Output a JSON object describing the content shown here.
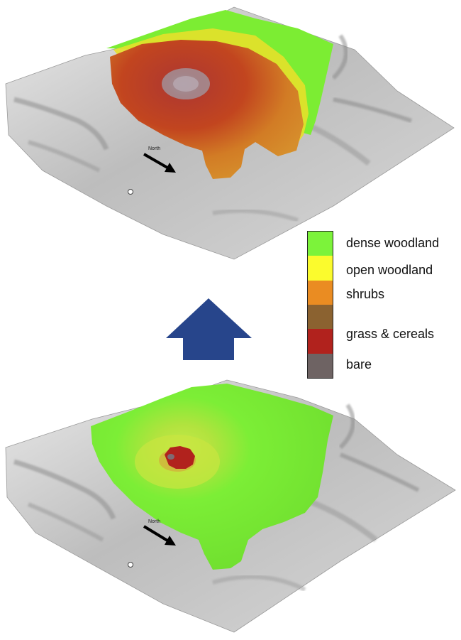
{
  "legend": {
    "items": [
      {
        "label": "dense woodland",
        "color": "#7cf33a"
      },
      {
        "label": "open woodland",
        "color": "#fbfb2d"
      },
      {
        "label": "shrubs",
        "color": "#ea8c22"
      },
      {
        "label": "grass & cereals",
        "color": "#8b6230"
      },
      {
        "label": "bare",
        "color": "#b1221d"
      },
      {
        "label": "",
        "color": "#6e6363"
      }
    ],
    "label_list": [
      "dense woodland",
      "open woodland",
      "shrubs",
      "grass & cereals",
      "bare"
    ]
  },
  "maps": {
    "top_north_label": "North",
    "bottom_north_label": "North"
  },
  "arrow": {
    "color": "#27458b",
    "icon": "up-arrow-icon"
  }
}
